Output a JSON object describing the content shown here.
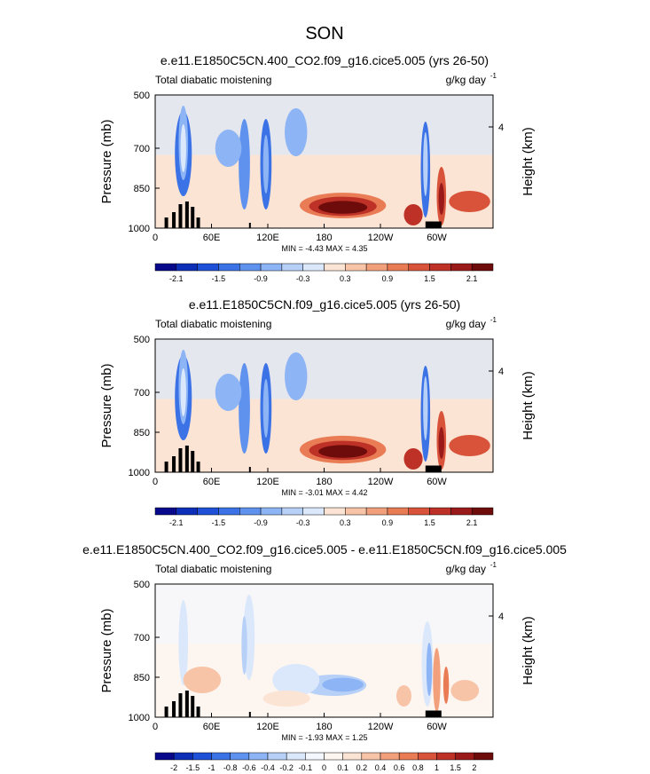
{
  "figure_title": "SON",
  "chart_data": [
    {
      "type": "heatmap",
      "title": "e.e11.E1850C5CN.400_CO2.f09_g16.cice5.005 (yrs 26-50)",
      "subtitle_left": "Total diabatic moistening",
      "units": "g/kg day",
      "units_exp": "-1",
      "ylabel": "Pressure (mb)",
      "ylabel_right": "Height (km)",
      "x_ticks": [
        "0",
        "60E",
        "120E",
        "180",
        "120W",
        "60W"
      ],
      "y_ticks": [
        "500",
        "700",
        "850",
        "1000"
      ],
      "right_ticks": [
        "4"
      ],
      "min_max": "MIN = -4.43  MAX =  4.35",
      "colorbar_labels": [
        "-2.1",
        "-1.5",
        "-0.9",
        "-0.3",
        "0.3",
        "0.9",
        "1.5",
        "2.1"
      ]
    },
    {
      "type": "heatmap",
      "title": "e.e11.E1850C5CN.f09_g16.cice5.005 (yrs 26-50)",
      "subtitle_left": "Total diabatic moistening",
      "units": "g/kg day",
      "units_exp": "-1",
      "ylabel": "Pressure (mb)",
      "ylabel_right": "Height (km)",
      "x_ticks": [
        "0",
        "60E",
        "120E",
        "180",
        "120W",
        "60W"
      ],
      "y_ticks": [
        "500",
        "700",
        "850",
        "1000"
      ],
      "right_ticks": [
        "4"
      ],
      "min_max": "MIN = -3.01  MAX =  4.42",
      "colorbar_labels": [
        "-2.1",
        "-1.5",
        "-0.9",
        "-0.3",
        "0.3",
        "0.9",
        "1.5",
        "2.1"
      ]
    },
    {
      "type": "heatmap",
      "title": "e.e11.E1850C5CN.400_CO2.f09_g16.cice5.005 - e.e11.E1850C5CN.f09_g16.cice5.005",
      "subtitle_left": "Total diabatic moistening",
      "units": "g/kg day",
      "units_exp": "-1",
      "ylabel": "Pressure (mb)",
      "ylabel_right": "Height (km)",
      "x_ticks": [
        "0",
        "60E",
        "120E",
        "180",
        "120W",
        "60W"
      ],
      "y_ticks": [
        "500",
        "700",
        "850",
        "1000"
      ],
      "right_ticks": [
        "4"
      ],
      "min_max": "MIN = -1.93  MAX =  1.25",
      "colorbar_labels": [
        "-2",
        "-1.5",
        "-1",
        "-0.8",
        "-0.6",
        "-0.4",
        "-0.2",
        "-0.1",
        "0",
        "0.1",
        "0.2",
        "0.4",
        "0.6",
        "0.8",
        "1",
        "1.5",
        "2"
      ]
    }
  ],
  "palette_main": [
    "#07098a",
    "#0d2fb8",
    "#1e50d8",
    "#3b72e6",
    "#5f92ee",
    "#8db4f4",
    "#b7d0f7",
    "#dbe8fb",
    "#fbe4d4",
    "#f8c4a8",
    "#f2a07c",
    "#e97b55",
    "#d8533a",
    "#bd3127",
    "#9a1a1a",
    "#6e0b0b"
  ],
  "palette_diff": [
    "#07098a",
    "#0d2fb8",
    "#1e50d8",
    "#3b72e6",
    "#5f92ee",
    "#8db4f4",
    "#b7d0f7",
    "#dbe8fb",
    "#f4f8fe",
    "#fdf5ef",
    "#fbe4d4",
    "#f8c4a8",
    "#f2a07c",
    "#e97b55",
    "#d8533a",
    "#bd3127",
    "#9a1a1a",
    "#6e0b0b"
  ]
}
